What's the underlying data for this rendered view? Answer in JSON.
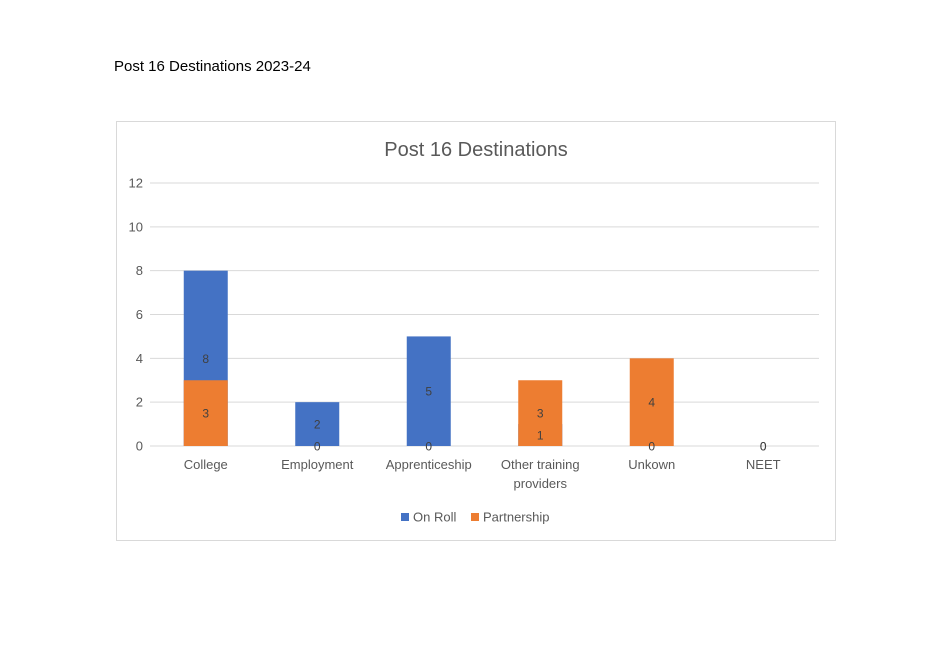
{
  "document": {
    "heading": "Post 16 Destinations 2023-24"
  },
  "chart_data": {
    "type": "bar",
    "stacked": true,
    "title": "Post 16 Destinations",
    "xlabel": "",
    "ylabel": "",
    "categories": [
      [
        "College"
      ],
      [
        "Employment"
      ],
      [
        "Apprenticeship"
      ],
      [
        "Other training",
        "providers"
      ],
      [
        "Unkown"
      ],
      [
        "NEET"
      ]
    ],
    "series": [
      {
        "name": "On Roll",
        "color": "#4472C4",
        "values": [
          8,
          2,
          5,
          1,
          0,
          0
        ]
      },
      {
        "name": "Partnership",
        "color": "#ED7D31",
        "values": [
          3,
          0,
          0,
          3,
          4,
          0
        ]
      }
    ],
    "ylim": [
      0,
      12
    ],
    "yticks": [
      0,
      2,
      4,
      6,
      8,
      10,
      12
    ],
    "grid": true,
    "legend_position": "bottom",
    "gridline_color": "#d9d9d9"
  }
}
